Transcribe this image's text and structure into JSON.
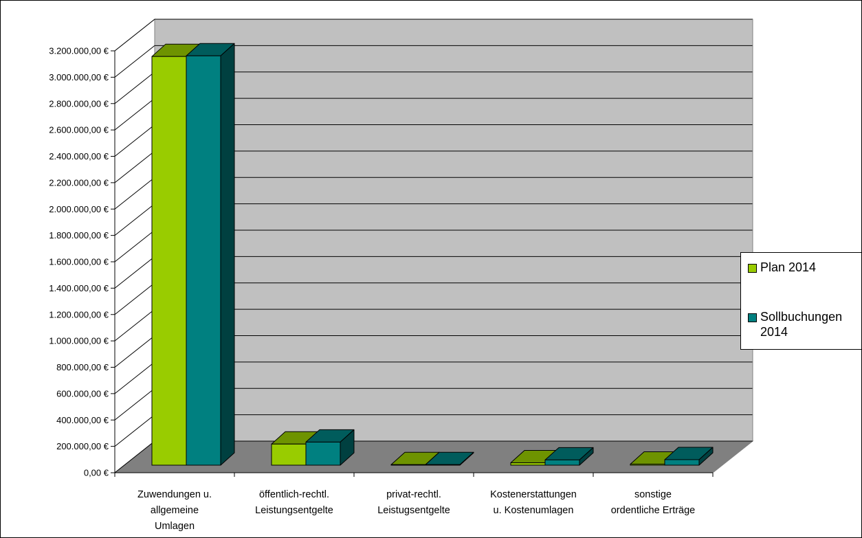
{
  "chart_data": {
    "type": "bar",
    "style": "3d-clustered-column",
    "categories": [
      [
        "Zuwendungen u.",
        "allgemeine",
        "Umlagen"
      ],
      [
        "öffentlich-rechtl.",
        "Leistungsentgelte"
      ],
      [
        "privat-rechtl.",
        "Leistugsentgelte"
      ],
      [
        "Kostenerstattungen",
        "u. Kostenumlagen"
      ],
      [
        "sonstige",
        "ordentliche Erträge"
      ]
    ],
    "series": [
      {
        "name": "Plan 2014",
        "color": "#99cc00",
        "values": [
          3100000,
          160000,
          4000,
          18000,
          8000
        ]
      },
      {
        "name": "Sollbuchungen 2014",
        "color": "#008080",
        "values": [
          3105000,
          175000,
          4000,
          40000,
          42000
        ]
      }
    ],
    "y_ticks": [
      "0,00 €",
      "200.000,00 €",
      "400.000,00 €",
      "600.000,00 €",
      "800.000,00 €",
      "1.000.000,00 €",
      "1.200.000,00 €",
      "1.400.000,00 €",
      "1.600.000,00 €",
      "1.800.000,00 €",
      "2.000.000,00 €",
      "2.200.000,00 €",
      "2.400.000,00 €",
      "2.600.000,00 €",
      "2.800.000,00 €",
      "3.000.000,00 €",
      "3.200.000,00 €"
    ],
    "ylim": [
      0,
      3200000
    ],
    "grid": true,
    "legend_position": "right"
  },
  "legend": {
    "items": [
      {
        "lines": [
          "Plan 2014"
        ],
        "color": "#99cc00"
      },
      {
        "lines": [
          "Sollbuchungen",
          "2014"
        ],
        "color": "#008080"
      }
    ]
  }
}
